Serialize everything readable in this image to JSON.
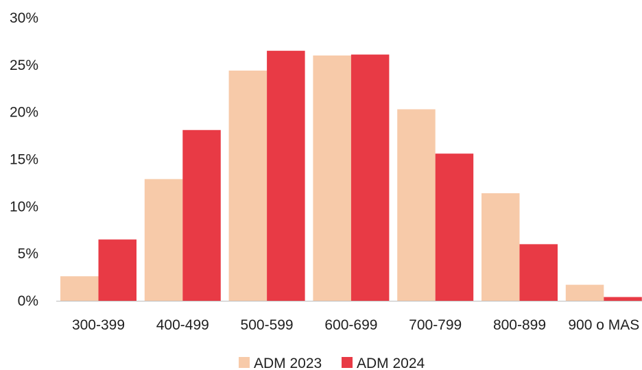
{
  "chart_data": {
    "type": "bar",
    "title": "",
    "xlabel": "",
    "ylabel": "",
    "categories": [
      "300-399",
      "400-499",
      "500-599",
      "600-699",
      "700-799",
      "800-899",
      "900 o MAS"
    ],
    "y_ticks": [
      "0%",
      "5%",
      "10%",
      "15%",
      "20%",
      "25%",
      "30%"
    ],
    "ylim": [
      0,
      30
    ],
    "grid": false,
    "legend_position": "bottom",
    "series": [
      {
        "name": "ADM 2023",
        "color": "#f7caa9",
        "values": [
          2.6,
          12.9,
          24.4,
          26.0,
          20.3,
          11.4,
          1.7
        ]
      },
      {
        "name": "ADM 2024",
        "color": "#e83a45",
        "values": [
          6.5,
          18.1,
          26.5,
          26.1,
          15.6,
          6.0,
          0.4
        ]
      }
    ]
  }
}
